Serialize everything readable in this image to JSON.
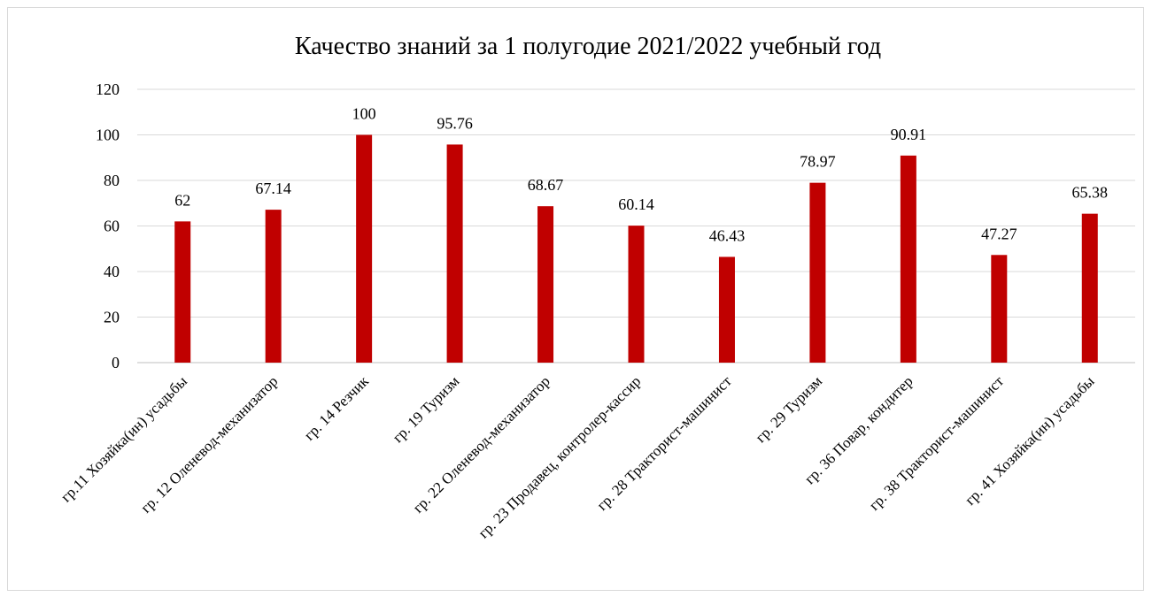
{
  "chart_data": {
    "type": "bar",
    "title": "Качество знаний за 1 полугодие 2021/2022 учебный год",
    "xlabel": "",
    "ylabel": "",
    "ylim": [
      0,
      120
    ],
    "yticks": [
      0,
      20,
      40,
      60,
      80,
      100,
      120
    ],
    "grid": true,
    "legend": "none",
    "bar_color": "#c00000",
    "categories": [
      "гр.11 Хозяйка(ин) усадьбы",
      "гр. 12 Оленевод-механизатор",
      "гр. 14 Резчик",
      "гр. 19 Туризм",
      "гр. 22 Оленевод-механизатор",
      "гр. 23 Продавец, контролер-кассир",
      "гр. 28 Тракторист-машинист",
      "гр. 29 Туризм",
      "гр. 36 Повар, кондитер",
      "гр. 38 Тракторист-машинист",
      "гр. 41 Хозяйка(ин) усадьбы"
    ],
    "values": [
      62,
      67.14,
      100,
      95.76,
      68.67,
      60.14,
      46.43,
      78.97,
      90.91,
      47.27,
      65.38
    ],
    "data_labels": [
      "62",
      "67.14",
      "100",
      "95.76",
      "68.67",
      "60.14",
      "46.43",
      "78.97",
      "90.91",
      "47.27",
      "65.38"
    ]
  }
}
